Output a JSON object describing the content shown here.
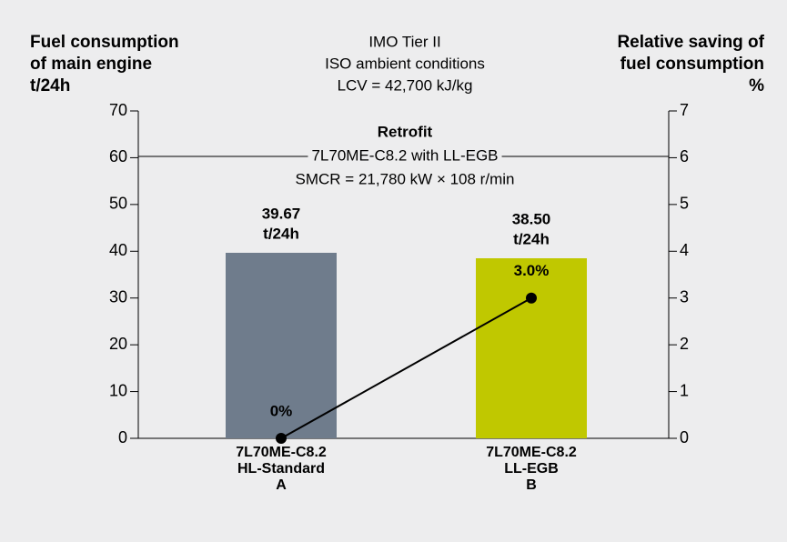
{
  "chart_data": {
    "type": "bar",
    "subtitle": [
      "IMO Tier II",
      "ISO ambient conditions",
      "LCV = 42,700 kJ/kg"
    ],
    "ylabel": [
      "Fuel consumption",
      "of main engine",
      "t/24h"
    ],
    "y2label": [
      "Relative saving of",
      "fuel consumption",
      "%"
    ],
    "annotation": [
      "Retrofit",
      "7L70ME-C8.2 with LL-EGB",
      "SMCR = 21,780 kW × 108 r/min"
    ],
    "categories": [
      [
        "7L70ME-C8.2",
        "HL-Standard",
        "A"
      ],
      [
        "7L70ME-C8.2",
        "LL-EGB",
        "B"
      ]
    ],
    "series": [
      {
        "type": "bar",
        "colors": [
          "#6f7c8c",
          "#c0c800"
        ],
        "values": [
          39.67,
          38.5
        ],
        "value_labels": [
          [
            "39.67",
            "t/24h"
          ],
          [
            "38.50",
            "t/24h"
          ]
        ]
      },
      {
        "type": "line",
        "axis": "y2",
        "color": "#000000",
        "values": [
          0,
          3
        ],
        "value_labels": [
          "0%",
          "3.0%"
        ]
      }
    ],
    "ylim": [
      0,
      70
    ],
    "yticks": [
      0,
      10,
      20,
      30,
      40,
      50,
      60,
      70
    ],
    "y2lim": [
      0,
      7
    ],
    "y2ticks": [
      0,
      1,
      2,
      3,
      4,
      5,
      6,
      7
    ],
    "grid": false
  }
}
